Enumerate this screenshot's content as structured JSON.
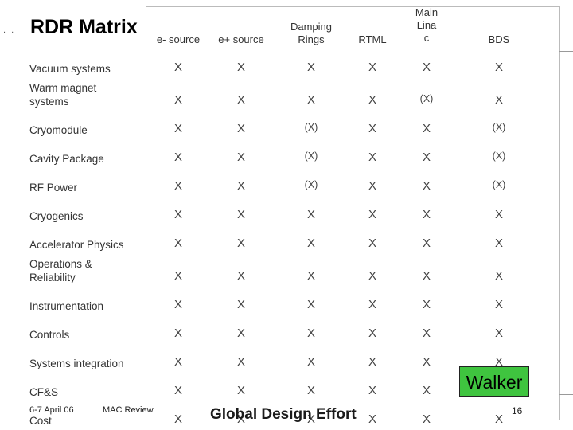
{
  "title": "RDR Matrix",
  "columns": [
    {
      "label": "e- source"
    },
    {
      "label": "e+ source"
    },
    {
      "label": "Damping\nRings"
    },
    {
      "label": "RTML"
    },
    {
      "label": "Main\nLina\nc"
    },
    {
      "label": "BDS"
    }
  ],
  "rows": [
    {
      "label": "Vacuum systems",
      "cells": [
        "X",
        "X",
        "X",
        "X",
        "X",
        "X"
      ]
    },
    {
      "label": "Warm magnet\n    systems",
      "cells": [
        "X",
        "X",
        "X",
        "X",
        "(X)",
        "X"
      ]
    },
    {
      "label": "Cryomodule",
      "cells": [
        "X",
        "X",
        "(X)",
        "X",
        "X",
        "(X)"
      ]
    },
    {
      "label": "Cavity Package",
      "cells": [
        "X",
        "X",
        "(X)",
        "X",
        "X",
        "(X)"
      ]
    },
    {
      "label": "RF Power",
      "cells": [
        "X",
        "X",
        "(X)",
        "X",
        "X",
        "(X)"
      ]
    },
    {
      "label": "Cryogenics",
      "cells": [
        "X",
        "X",
        "X",
        "X",
        "X",
        "X"
      ]
    },
    {
      "label": "Accelerator Physics",
      "cells": [
        "X",
        "X",
        "X",
        "X",
        "X",
        "X"
      ]
    },
    {
      "label": "Operations &\n      Reliability",
      "cells": [
        "X",
        "X",
        "X",
        "X",
        "X",
        "X"
      ]
    },
    {
      "label": "Instrumentation",
      "cells": [
        "X",
        "X",
        "X",
        "X",
        "X",
        "X"
      ]
    },
    {
      "label": "Controls",
      "cells": [
        "X",
        "X",
        "X",
        "X",
        "X",
        "X"
      ]
    },
    {
      "label": "Systems integration",
      "cells": [
        "X",
        "X",
        "X",
        "X",
        "X",
        "X"
      ]
    },
    {
      "label": "CF&S",
      "cells": [
        "X",
        "X",
        "X",
        "X",
        "X",
        ""
      ]
    },
    {
      "label": "Cost",
      "cells": [
        "X",
        "X",
        "X",
        "X",
        "X",
        "X"
      ]
    }
  ],
  "walker_label": "Walker",
  "footer": {
    "date": "6-7 April 06",
    "meeting": "MAC Review",
    "center": "Global Design Effort",
    "page": "16"
  }
}
